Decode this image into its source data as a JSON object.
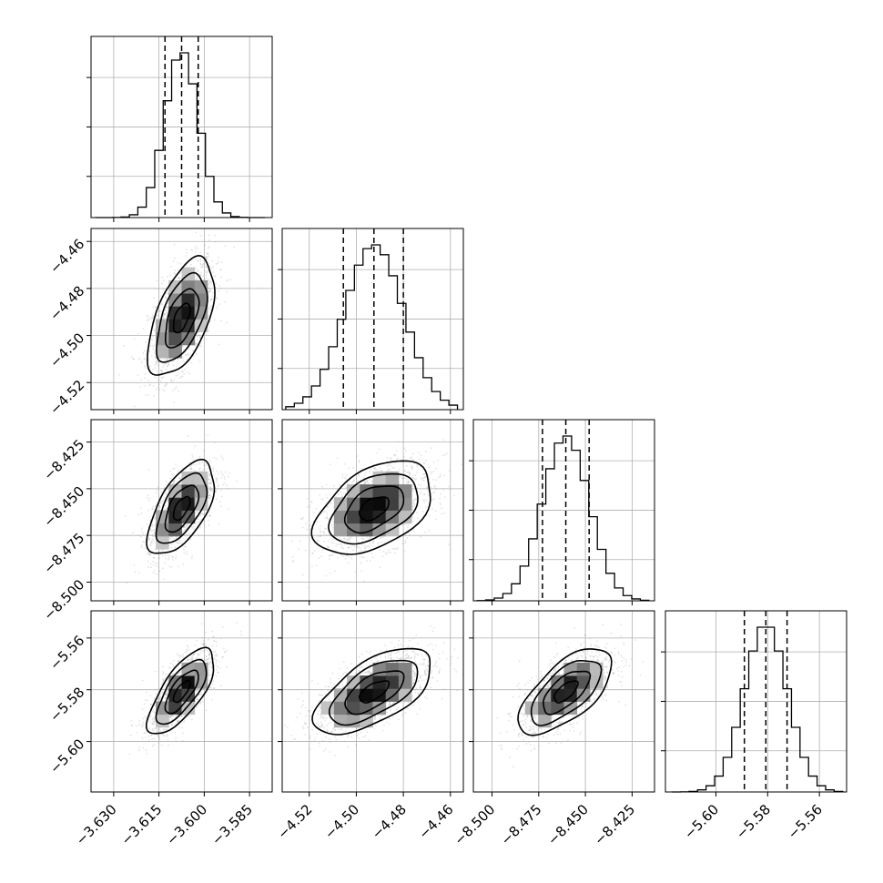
{
  "chart_data": {
    "type": "corner",
    "grid": true,
    "parameters": [
      {
        "mean": -3.6075,
        "std": 0.0055,
        "range": [
          -3.6375,
          -3.5775
        ],
        "hist_range": [
          -3.636,
          -3.58
        ],
        "quantiles": [
          -3.613,
          -3.6075,
          -3.602
        ],
        "ticks": [
          -3.63,
          -3.615,
          -3.6,
          -3.585
        ],
        "tick_labels": [
          "−3.630",
          "−3.615",
          "−3.600",
          "−3.585"
        ]
      },
      {
        "mean": -4.4925,
        "std": 0.0125,
        "range": [
          -4.5315,
          -4.4545
        ],
        "hist_range": [
          -4.53,
          -4.457
        ],
        "quantiles": [
          -4.5055,
          -4.4925,
          -4.48
        ],
        "ticks": [
          -4.52,
          -4.5,
          -4.48,
          -4.46
        ],
        "tick_labels": [
          "−4.52",
          "−4.50",
          "−4.48",
          "−4.46"
        ]
      },
      {
        "mean": -8.4605,
        "std": 0.0125,
        "range": [
          -8.51,
          -8.413
        ],
        "hist_range": [
          -8.508,
          -8.416
        ],
        "quantiles": [
          -8.473,
          -8.4605,
          -8.448
        ],
        "ticks": [
          -8.5,
          -8.475,
          -8.45,
          -8.425
        ],
        "tick_labels": [
          "−8.500",
          "−8.475",
          "−8.450",
          "−8.425"
        ]
      },
      {
        "mean": -5.5807,
        "std": 0.0083,
        "range": [
          -5.6195,
          -5.5495
        ],
        "hist_range": [
          -5.617,
          -5.551
        ],
        "quantiles": [
          -5.589,
          -5.5807,
          -5.5725
        ],
        "ticks": [
          -5.6,
          -5.58,
          -5.56
        ],
        "tick_labels": [
          "−5.60",
          "−5.58",
          "−5.56"
        ]
      }
    ],
    "correlations": {
      "1-0": 0.55,
      "2-0": 0.6,
      "2-1": 0.45,
      "3-0": 0.72,
      "3-1": 0.62,
      "3-2": 0.65
    },
    "quantile_levels": [
      0.16,
      0.5,
      0.84
    ],
    "contour_levels": [
      0.5,
      1.0,
      1.5,
      2.0
    ],
    "hist_bins": 20
  }
}
